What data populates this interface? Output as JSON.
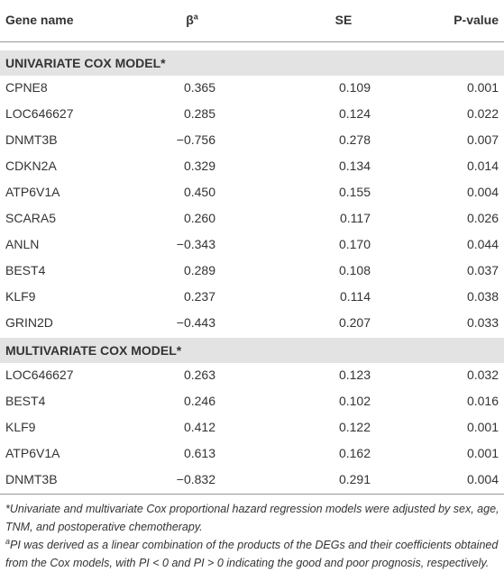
{
  "table": {
    "header": [
      {
        "text": "Gene name"
      },
      {
        "text": "β",
        "sup": "a"
      },
      {
        "text": "SE"
      },
      {
        "text": "P-value"
      }
    ],
    "sections": [
      {
        "title": "UNIVARIATE COX MODEL*",
        "rows": [
          [
            "CPNE8",
            "0.365",
            "0.109",
            "0.001"
          ],
          [
            "LOC646627",
            "0.285",
            "0.124",
            "0.022"
          ],
          [
            "DNMT3B",
            "−0.756",
            "0.278",
            "0.007"
          ],
          [
            "CDKN2A",
            "0.329",
            "0.134",
            "0.014"
          ],
          [
            "ATP6V1A",
            "0.450",
            "0.155",
            "0.004"
          ],
          [
            "SCARA5",
            "0.260",
            "0.117",
            "0.026"
          ],
          [
            "ANLN",
            "−0.343",
            "0.170",
            "0.044"
          ],
          [
            "BEST4",
            "0.289",
            "0.108",
            "0.037"
          ],
          [
            "KLF9",
            "0.237",
            "0.114",
            "0.038"
          ],
          [
            "GRIN2D",
            "−0.443",
            "0.207",
            "0.033"
          ]
        ]
      },
      {
        "title": "MULTIVARIATE COX MODEL*",
        "rows": [
          [
            "LOC646627",
            "0.263",
            "0.123",
            "0.032"
          ],
          [
            "BEST4",
            "0.246",
            "0.102",
            "0.016"
          ],
          [
            "KLF9",
            "0.412",
            "0.122",
            "0.001"
          ],
          [
            "ATP6V1A",
            "0.613",
            "0.162",
            "0.001"
          ],
          [
            "DNMT3B",
            "−0.832",
            "0.291",
            "0.004"
          ]
        ]
      }
    ],
    "footnotes": [
      {
        "text": "*Univariate and multivariate Cox proportional hazard regression models were adjusted by sex, age, TNM, and postoperative chemotherapy."
      },
      {
        "mark": "a",
        "text": "PI was derived as a linear combination of the products of the DEGs and their coefficients obtained from the Cox models, with PI < 0 and PI > 0 indicating the good and poor prognosis, respectively."
      }
    ]
  }
}
